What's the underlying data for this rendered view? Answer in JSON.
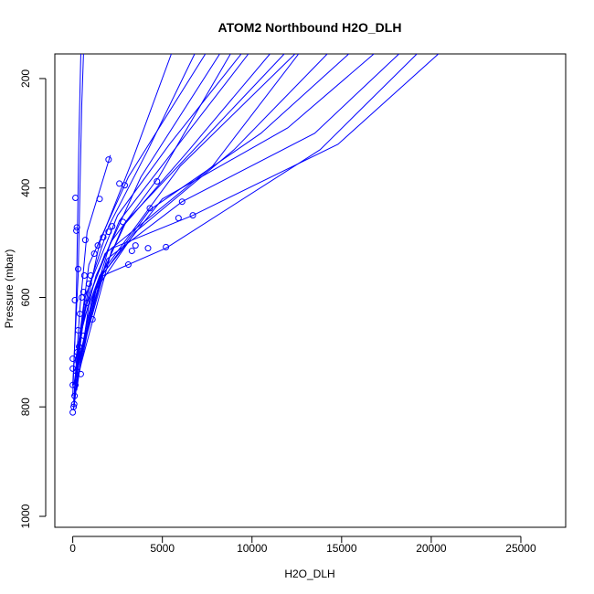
{
  "chart_data": {
    "type": "line",
    "title": "ATOM2 Northbound H2O_DLH",
    "xlabel": "H2O_DLH",
    "ylabel": "Pressure (mbar)",
    "xlim": [
      -1000,
      27500
    ],
    "ylim": [
      1020,
      155
    ],
    "y_reversed": true,
    "grid": false,
    "legend": "none",
    "color": "#0000ff",
    "x_ticks": [
      0,
      5000,
      10000,
      15000,
      20000,
      25000
    ],
    "y_ticks": [
      200,
      400,
      600,
      800,
      1000
    ],
    "series": [
      {
        "x": [
          0,
          200,
          350,
          450
        ],
        "y": [
          780,
          600,
          300,
          155
        ]
      },
      {
        "x": [
          0,
          300,
          500,
          600
        ],
        "y": [
          760,
          560,
          250,
          155
        ]
      },
      {
        "x": [
          50,
          400,
          800,
          2100
        ],
        "y": [
          790,
          620,
          480,
          340
        ]
      },
      {
        "x": [
          100,
          600,
          1500,
          3200,
          5500
        ],
        "y": [
          770,
          640,
          500,
          360,
          155
        ]
      },
      {
        "x": [
          150,
          700,
          2000,
          4200,
          6800
        ],
        "y": [
          740,
          600,
          470,
          330,
          155
        ]
      },
      {
        "x": [
          80,
          500,
          1300,
          3800,
          8200
        ],
        "y": [
          800,
          660,
          560,
          380,
          155
        ]
      },
      {
        "x": [
          120,
          900,
          2500,
          5400,
          9400
        ],
        "y": [
          720,
          580,
          450,
          320,
          155
        ]
      },
      {
        "x": [
          200,
          1100,
          2800,
          6500,
          11000
        ],
        "y": [
          740,
          600,
          470,
          330,
          155
        ]
      },
      {
        "x": [
          60,
          700,
          1800,
          7800,
          12600
        ],
        "y": [
          760,
          620,
          520,
          360,
          155
        ]
      },
      {
        "x": [
          250,
          1200,
          3500,
          9000,
          14200
        ],
        "y": [
          750,
          590,
          480,
          330,
          155
        ]
      },
      {
        "x": [
          100,
          1400,
          4300,
          10500,
          15400
        ],
        "y": [
          780,
          570,
          440,
          300,
          155
        ]
      },
      {
        "x": [
          180,
          1600,
          5000,
          12000,
          16800
        ],
        "y": [
          730,
          560,
          420,
          290,
          155
        ]
      },
      {
        "x": [
          300,
          1900,
          6100,
          13500,
          18200
        ],
        "y": [
          720,
          530,
          425,
          300,
          155
        ]
      },
      {
        "x": [
          150,
          2200,
          6700,
          14800,
          20400
        ],
        "y": [
          760,
          510,
          450,
          320,
          155
        ]
      },
      {
        "x": [
          220,
          1000,
          2600,
          9800
        ],
        "y": [
          770,
          590,
          460,
          155
        ]
      },
      {
        "x": [
          90,
          800,
          2100,
          4800,
          8800
        ],
        "y": [
          790,
          640,
          500,
          380,
          155
        ]
      },
      {
        "x": [
          260,
          1300,
          3000,
          11800
        ],
        "y": [
          735,
          580,
          460,
          155
        ]
      },
      {
        "x": [
          140,
          1700,
          5200,
          13800,
          19200
        ],
        "y": [
          745,
          560,
          510,
          330,
          155
        ]
      },
      {
        "x": [
          40,
          300,
          900,
          3100,
          7400
        ],
        "y": [
          805,
          690,
          540,
          380,
          155
        ]
      },
      {
        "x": [
          110,
          500,
          1500,
          6000,
          12400
        ],
        "y": [
          765,
          650,
          560,
          360,
          155
        ]
      }
    ],
    "markers": [
      {
        "x": 2000,
        "y": 348
      },
      {
        "x": 150,
        "y": 418
      },
      {
        "x": 200,
        "y": 478
      },
      {
        "x": 230,
        "y": 472
      },
      {
        "x": 4700,
        "y": 388
      },
      {
        "x": 6100,
        "y": 425
      },
      {
        "x": 6700,
        "y": 450
      },
      {
        "x": 5900,
        "y": 455
      },
      {
        "x": 4300,
        "y": 437
      },
      {
        "x": 4200,
        "y": 510
      },
      {
        "x": 5200,
        "y": 508
      },
      {
        "x": 3500,
        "y": 505
      },
      {
        "x": 3300,
        "y": 515
      },
      {
        "x": 3100,
        "y": 540
      },
      {
        "x": 2800,
        "y": 462
      },
      {
        "x": 2900,
        "y": 395
      },
      {
        "x": 2600,
        "y": 392
      },
      {
        "x": 2200,
        "y": 470
      },
      {
        "x": 2000,
        "y": 480
      },
      {
        "x": 1500,
        "y": 420
      },
      {
        "x": 1400,
        "y": 505
      },
      {
        "x": 1200,
        "y": 520
      },
      {
        "x": 1000,
        "y": 560
      },
      {
        "x": 700,
        "y": 495
      },
      {
        "x": 600,
        "y": 590
      },
      {
        "x": 500,
        "y": 600
      },
      {
        "x": 400,
        "y": 630
      },
      {
        "x": 300,
        "y": 660
      },
      {
        "x": 250,
        "y": 700
      },
      {
        "x": 200,
        "y": 735
      },
      {
        "x": 150,
        "y": 760
      },
      {
        "x": 100,
        "y": 780
      },
      {
        "x": 50,
        "y": 800
      },
      {
        "x": 0,
        "y": 810
      },
      {
        "x": 0,
        "y": 760
      },
      {
        "x": 0,
        "y": 730
      },
      {
        "x": 0,
        "y": 712
      },
      {
        "x": 80,
        "y": 795
      },
      {
        "x": 120,
        "y": 605
      },
      {
        "x": 300,
        "y": 548
      },
      {
        "x": 900,
        "y": 575
      },
      {
        "x": 800,
        "y": 610
      },
      {
        "x": 1100,
        "y": 640
      },
      {
        "x": 650,
        "y": 560
      },
      {
        "x": 350,
        "y": 690
      },
      {
        "x": 450,
        "y": 740
      },
      {
        "x": 600,
        "y": 670
      },
      {
        "x": 1700,
        "y": 490
      }
    ]
  }
}
